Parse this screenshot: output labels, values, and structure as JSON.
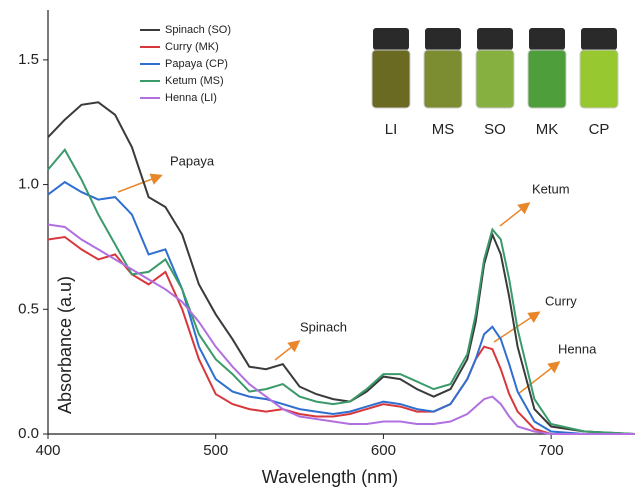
{
  "chart_data": {
    "type": "line",
    "x_label": "Wavelength (nm)",
    "y_label": "Absorbance (a.u)",
    "xlim": [
      400,
      750
    ],
    "ylim": [
      0,
      1.7
    ],
    "xticks": [
      400,
      500,
      600,
      700
    ],
    "yticks": [
      {
        "value": 0,
        "label": "0.0"
      },
      0.5,
      {
        "value": 1,
        "label": "1.0"
      },
      1.5
    ],
    "grid": false,
    "legend": "upper left",
    "x": [
      400,
      410,
      420,
      430,
      440,
      450,
      460,
      470,
      480,
      490,
      500,
      510,
      520,
      530,
      540,
      550,
      560,
      570,
      580,
      590,
      600,
      610,
      620,
      630,
      640,
      650,
      655,
      660,
      665,
      670,
      675,
      680,
      690,
      700,
      720,
      750
    ],
    "series": [
      {
        "name": "Spinach (SO)",
        "color": "#3a3a3a",
        "values": [
          1.19,
          1.26,
          1.32,
          1.33,
          1.28,
          1.15,
          0.95,
          0.91,
          0.8,
          0.6,
          0.48,
          0.38,
          0.27,
          0.26,
          0.28,
          0.19,
          0.16,
          0.14,
          0.13,
          0.17,
          0.23,
          0.22,
          0.18,
          0.15,
          0.18,
          0.3,
          0.45,
          0.68,
          0.8,
          0.72,
          0.55,
          0.35,
          0.1,
          0.03,
          0.01,
          0
        ]
      },
      {
        "name": "Curry (MK)",
        "color": "#d8383c",
        "values": [
          0.78,
          0.79,
          0.74,
          0.7,
          0.72,
          0.64,
          0.6,
          0.65,
          0.5,
          0.3,
          0.16,
          0.12,
          0.1,
          0.09,
          0.1,
          0.08,
          0.07,
          0.07,
          0.08,
          0.1,
          0.12,
          0.11,
          0.09,
          0.09,
          0.12,
          0.22,
          0.3,
          0.35,
          0.34,
          0.26,
          0.16,
          0.09,
          0.02,
          0,
          0,
          0
        ]
      },
      {
        "name": "Papaya (CP)",
        "color": "#2f6fd0",
        "values": [
          0.96,
          1.01,
          0.97,
          0.94,
          0.95,
          0.88,
          0.72,
          0.74,
          0.58,
          0.35,
          0.22,
          0.17,
          0.15,
          0.14,
          0.12,
          0.1,
          0.09,
          0.08,
          0.09,
          0.11,
          0.13,
          0.12,
          0.1,
          0.09,
          0.12,
          0.22,
          0.3,
          0.4,
          0.43,
          0.38,
          0.28,
          0.17,
          0.05,
          0.01,
          0,
          0
        ]
      },
      {
        "name": "Ketum (MS)",
        "color": "#3a9a6a",
        "values": [
          1.06,
          1.14,
          1.02,
          0.88,
          0.76,
          0.64,
          0.65,
          0.7,
          0.58,
          0.4,
          0.3,
          0.24,
          0.17,
          0.18,
          0.2,
          0.15,
          0.13,
          0.12,
          0.13,
          0.18,
          0.24,
          0.24,
          0.21,
          0.18,
          0.2,
          0.32,
          0.48,
          0.7,
          0.82,
          0.78,
          0.62,
          0.42,
          0.14,
          0.04,
          0.01,
          0
        ]
      },
      {
        "name": "Henna (LI)",
        "color": "#b070e0",
        "values": [
          0.84,
          0.83,
          0.78,
          0.74,
          0.7,
          0.66,
          0.62,
          0.58,
          0.53,
          0.45,
          0.35,
          0.27,
          0.2,
          0.15,
          0.1,
          0.07,
          0.06,
          0.05,
          0.04,
          0.04,
          0.05,
          0.05,
          0.04,
          0.04,
          0.05,
          0.08,
          0.11,
          0.14,
          0.15,
          0.12,
          0.07,
          0.03,
          0.01,
          0,
          0,
          0
        ]
      }
    ],
    "annotations": [
      "Papaya",
      "Spinach",
      "Ketum",
      "Curry",
      "Henna"
    ],
    "inset_labels": [
      "LI",
      "MS",
      "SO",
      "MK",
      "CP"
    ]
  }
}
